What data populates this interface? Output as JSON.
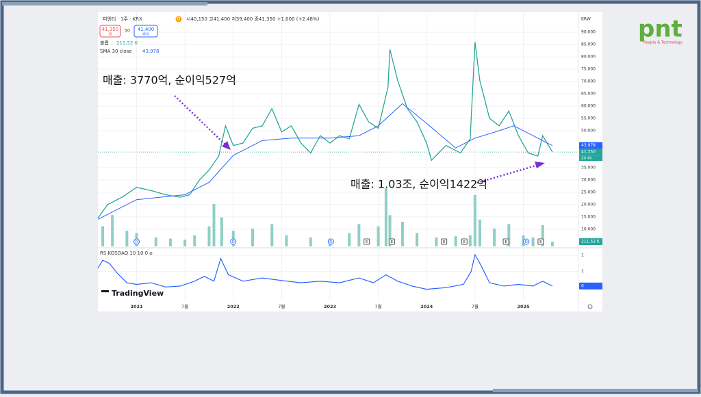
{
  "logo": {
    "text": "pnt",
    "tagline": "People & Technology"
  },
  "annotations": [
    "매출: 3770억, 순이익527억",
    "매출: 1.03조, 순이익1422억"
  ],
  "header": {
    "symbol": "피엔티 · 1주 · KRX",
    "interval_badge": "D",
    "ohlc": "시40,150 고41,400 저39,400 종41,350 +1,000 (+2.48%)",
    "sell_price": "41,350",
    "sell_label": "팜",
    "spread": "50",
    "buy_price": "41,400",
    "buy_label": "바이",
    "volume_label": "볼륨",
    "sma_label": "SMA 30 close",
    "rs_label": "RS KOSDAQ 10 10 0 ⌀",
    "currency": "KRW",
    "brand": "TradingView",
    "countdown": "2d 4h"
  },
  "chart_data": [
    {
      "type": "line",
      "xlim": [
        2020.6,
        2025.57
      ],
      "ylim": [
        3000,
        97000
      ],
      "yticks": [
        {
          "value": 10000,
          "label": "10,000"
        },
        {
          "value": 15000,
          "label": "15,000"
        },
        {
          "value": 20000,
          "label": "20,000"
        },
        {
          "value": 25000,
          "label": "25,000"
        },
        {
          "value": 30000,
          "label": "30,000"
        },
        {
          "value": 35000,
          "label": "35,000"
        },
        {
          "value": 50000,
          "label": "50,000"
        },
        {
          "value": 55000,
          "label": "55,000"
        },
        {
          "value": 60000,
          "label": "60,000"
        },
        {
          "value": 65000,
          "label": "65,000"
        },
        {
          "value": 70000,
          "label": "70,000"
        },
        {
          "value": 75000,
          "label": "75,000"
        },
        {
          "value": 80000,
          "label": "80,000"
        },
        {
          "value": 85000,
          "label": "85,000"
        },
        {
          "value": 90000,
          "label": "90,000"
        }
      ],
      "grid": true,
      "series": [
        {
          "color": "#26a69a",
          "x": [
            2020.6,
            2020.7,
            2020.85,
            2021.0,
            2021.15,
            2021.3,
            2021.45,
            2021.55,
            2021.65,
            2021.75,
            2021.85,
            2021.92,
            2022.0,
            2022.1,
            2022.2,
            2022.3,
            2022.4,
            2022.5,
            2022.6,
            2022.7,
            2022.8,
            2022.9,
            2023.0,
            2023.1,
            2023.2,
            2023.3,
            2023.4,
            2023.5,
            2023.6,
            2023.62,
            2023.7,
            2023.8,
            2023.9,
            2024.0,
            2024.05,
            2024.2,
            2024.35,
            2024.45,
            2024.5,
            2024.55,
            2024.65,
            2024.75,
            2024.85,
            2024.95,
            2025.05,
            2025.15,
            2025.2,
            2025.3
          ],
          "values": [
            14500,
            20000,
            23000,
            27000,
            25700,
            24000,
            23000,
            24000,
            30000,
            34000,
            39700,
            52000,
            44000,
            45000,
            51000,
            52000,
            59000,
            49500,
            52000,
            45000,
            41000,
            48000,
            45000,
            48000,
            46700,
            60700,
            53600,
            51000,
            67600,
            83000,
            70400,
            59000,
            53600,
            45000,
            38000,
            44000,
            41000,
            46700,
            86000,
            70400,
            55000,
            52000,
            58000,
            48000,
            41000,
            39700,
            48000,
            41350
          ]
        },
        {
          "color": "#2962ff",
          "x": [
            2020.6,
            2021.0,
            2021.5,
            2021.75,
            2022.0,
            2022.3,
            2022.6,
            2023.0,
            2023.3,
            2023.5,
            2023.75,
            2024.0,
            2024.3,
            2024.5,
            2024.75,
            2024.9,
            2025.1,
            2025.3
          ],
          "values": [
            14000,
            22000,
            24000,
            29000,
            40000,
            46000,
            47000,
            47000,
            48000,
            52000,
            61000,
            53000,
            43000,
            47000,
            50000,
            52000,
            48000,
            43978
          ]
        }
      ],
      "sma_last": {
        "value": 43978,
        "label": "43,978"
      },
      "last_close": {
        "value": 41350,
        "label": "41,350"
      }
    },
    {
      "type": "bar",
      "color": "#8fcfc6",
      "ylim": [
        0,
        3000000
      ],
      "x": [
        2020.65,
        2020.75,
        2020.9,
        2021.0,
        2021.2,
        2021.35,
        2021.5,
        2021.6,
        2021.75,
        2021.8,
        2021.88,
        2022.0,
        2022.2,
        2022.4,
        2022.55,
        2022.8,
        2023.0,
        2023.2,
        2023.3,
        2023.5,
        2023.58,
        2023.62,
        2023.75,
        2023.9,
        2024.1,
        2024.3,
        2024.45,
        2024.5,
        2024.55,
        2024.7,
        2024.85,
        2025.0,
        2025.1,
        2025.2,
        2025.3
      ],
      "values": [
        900000,
        1400000,
        700000,
        600000,
        400000,
        350000,
        300000,
        500000,
        900000,
        1900000,
        1300000,
        700000,
        800000,
        1000000,
        500000,
        400000,
        350000,
        600000,
        1000000,
        900000,
        2600000,
        1400000,
        1100000,
        600000,
        400000,
        450000,
        500000,
        2300000,
        1200000,
        800000,
        1000000,
        500000,
        400000,
        950000,
        211520
      ],
      "last_volume": {
        "value": 211520,
        "label": "211.52 K"
      },
      "events": [
        {
          "x": 2021.0,
          "label": "D"
        },
        {
          "x": 2022.0,
          "label": "D"
        },
        {
          "x": 2023.01,
          "label": "D"
        },
        {
          "x": 2023.38,
          "label": "E"
        },
        {
          "x": 2023.64,
          "label": "E"
        },
        {
          "x": 2024.18,
          "label": "E"
        },
        {
          "x": 2024.39,
          "label": "E"
        },
        {
          "x": 2024.82,
          "label": "E"
        },
        {
          "x": 2025.03,
          "label": "D"
        },
        {
          "x": 2025.18,
          "label": "E"
        }
      ]
    },
    {
      "type": "line",
      "color": "#2962ff",
      "ylim": [
        0.15,
        1.55
      ],
      "xticks": [
        {
          "value": 2021,
          "label": "2021"
        },
        {
          "value": 2021.5,
          "label": "7월"
        },
        {
          "value": 2022,
          "label": "2022"
        },
        {
          "value": 2022.5,
          "label": "7월"
        },
        {
          "value": 2023,
          "label": "2023"
        },
        {
          "value": 2023.5,
          "label": "7월"
        },
        {
          "value": 2024,
          "label": "2024"
        },
        {
          "value": 2024.5,
          "label": "7월"
        },
        {
          "value": 2025,
          "label": "2025"
        }
      ],
      "yticks": [
        {
          "value": 1.4,
          "label": "1"
        },
        {
          "value": 0.9,
          "label": "1"
        }
      ],
      "x": [
        2020.6,
        2020.65,
        2020.72,
        2020.8,
        2020.9,
        2021.0,
        2021.15,
        2021.3,
        2021.45,
        2021.6,
        2021.7,
        2021.8,
        2021.87,
        2021.95,
        2022.1,
        2022.3,
        2022.5,
        2022.7,
        2022.9,
        2023.1,
        2023.3,
        2023.45,
        2023.58,
        2023.7,
        2023.85,
        2024.0,
        2024.2,
        2024.38,
        2024.46,
        2024.5,
        2024.56,
        2024.65,
        2024.8,
        2024.95,
        2025.1,
        2025.2,
        2025.3
      ],
      "values": [
        1.0,
        1.25,
        1.15,
        0.85,
        0.55,
        0.5,
        0.55,
        0.42,
        0.45,
        0.6,
        0.75,
        0.6,
        1.3,
        0.8,
        0.6,
        0.7,
        0.62,
        0.55,
        0.6,
        0.55,
        0.7,
        0.55,
        0.8,
        0.6,
        0.45,
        0.35,
        0.4,
        0.5,
        0.9,
        1.42,
        1.1,
        0.55,
        0.45,
        0.5,
        0.45,
        0.6,
        0.45
      ],
      "last_value": {
        "value": 0.45,
        "label": "0"
      }
    }
  ]
}
